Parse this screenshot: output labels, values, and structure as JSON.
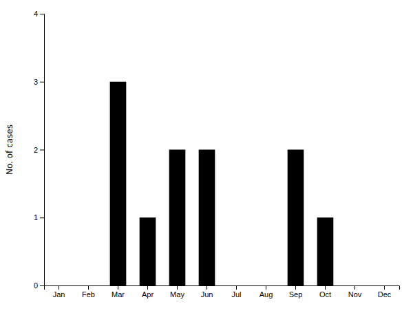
{
  "chart_data": {
    "type": "bar",
    "categories": [
      "Jan",
      "Feb",
      "Mar",
      "Apr",
      "May",
      "Jun",
      "Jul",
      "Aug",
      "Sep",
      "Oct",
      "Nov",
      "Dec"
    ],
    "values": [
      0,
      0,
      3,
      1,
      2,
      2,
      0,
      0,
      2,
      1,
      0,
      0
    ],
    "color": "#000000",
    "ylabel": "No. of cases",
    "ylim": [
      0,
      4
    ],
    "yticks": [
      0,
      1,
      2,
      3,
      4
    ],
    "grid": false
  }
}
